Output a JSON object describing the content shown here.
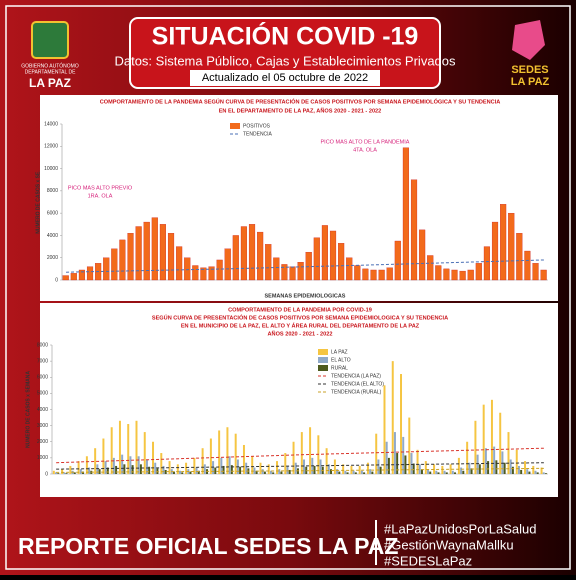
{
  "header": {
    "title": "SITUACIÓN COVID -19",
    "subtitle": "Datos: Sistema Público, Cajas y Establecimientos Privados",
    "updated": "Actualizado el  05  octubre  de 2022",
    "left_logo": [
      "GOBIERNO AUTÓNOMO",
      "DEPARTAMENTAL DE",
      "LA PAZ"
    ],
    "right_logo": [
      "SEDES",
      "LA PAZ"
    ]
  },
  "footer": {
    "title": "REPORTE OFICIAL SEDES LA PAZ",
    "hashtags": [
      "#LaPazUnidosPorLaSalud",
      "#GestiónWaynaMallku",
      "#SEDESLaPaz"
    ]
  },
  "chart_data": [
    {
      "type": "bar",
      "title": [
        "COMPORTAMIENTO DE LA PANDEMIA SEGÚN CURVA DE PRESENTACIÓN DE CASOS POSITIVOS POR SEMANA EPIDEMIOLÓGICA Y SU TENDENCIA",
        "EN EL DEPARTAMENTO DE LA PAZ, AÑOS 2020 - 2021 - 2022"
      ],
      "ylabel": "NUMERO DE CASOS x SE.",
      "xlabel": "SEMANAS EPIDEMIOLOGICAS",
      "ylim": [
        0,
        14000
      ],
      "yticks": [
        0,
        2000,
        4000,
        6000,
        8000,
        10000,
        12000,
        14000
      ],
      "annotations": [
        [
          "PICO MAS ALTO PREVIO",
          "1RA. OLA"
        ],
        [
          "PICO MAS ALTO DE LA PANDEMIA",
          "4TA. OLA"
        ]
      ],
      "series": [
        {
          "name": "POSITIVOS",
          "color": "#f26a1b",
          "values": [
            400,
            600,
            900,
            1200,
            1500,
            2000,
            2800,
            3600,
            4200,
            4800,
            5200,
            5600,
            5000,
            4200,
            3000,
            2000,
            1300,
            1100,
            1200,
            1800,
            2800,
            4000,
            4800,
            5000,
            4300,
            3200,
            2000,
            1400,
            1200,
            1600,
            2500,
            3800,
            4900,
            4400,
            3300,
            2000,
            1300,
            1000,
            900,
            900,
            1100,
            3500,
            11877,
            9000,
            4500,
            2200,
            1300,
            1000,
            900,
            800,
            900,
            1500,
            3000,
            5200,
            6800,
            6000,
            4200,
            2600,
            1500,
            900
          ]
        },
        {
          "name": "TENDENCIA",
          "type": "line",
          "color": "#4a6fb5",
          "x": [
            0,
            20,
            40,
            59
          ],
          "values": [
            700,
            1000,
            1400,
            1800
          ]
        }
      ]
    },
    {
      "type": "bar",
      "title": [
        "COMPORTAMIENTO DE LA PANDEMIA POR COVID-19",
        "SEGÚN CURVA DE PRESENTACIÓN DE CASOS POSITIVOS POR SEMANA EPIDEMIOLOGICA Y SU TENDENCIA",
        "EN EL  MUNICIPIO DE LA PAZ, EL ALTO Y ÁREA RURAL DEL DEPARTAMENTO DE LA PAZ",
        "AÑOS 2020 - 2021 - 2022"
      ],
      "ylabel": "NUMERO DE CASOS x SEMANA",
      "ylim": [
        0,
        8000
      ],
      "yticks": [
        0,
        1000,
        2000,
        3000,
        4000,
        5000,
        6000,
        7000,
        8000
      ],
      "series": [
        {
          "name": "LA PAZ",
          "color": "#f5c542",
          "values": [
            200,
            300,
            500,
            800,
            1100,
            1600,
            2200,
            2900,
            3300,
            3100,
            3300,
            2600,
            2000,
            1300,
            800,
            600,
            700,
            1000,
            1600,
            2200,
            2700,
            2900,
            2500,
            1800,
            1100,
            700,
            600,
            800,
            1300,
            2000,
            2600,
            2900,
            2400,
            1600,
            900,
            600,
            500,
            500,
            700,
            2500,
            5500,
            7000,
            6200,
            3500,
            1500,
            800,
            600,
            500,
            600,
            1000,
            2000,
            3300,
            4300,
            4600,
            3800,
            2600,
            1500,
            800,
            500,
            400
          ]
        },
        {
          "name": "EL ALTO",
          "color": "#8fa9c9",
          "values": [
            100,
            100,
            200,
            300,
            400,
            600,
            800,
            1000,
            1200,
            1100,
            1100,
            900,
            700,
            500,
            300,
            200,
            300,
            400,
            600,
            800,
            1000,
            1100,
            900,
            700,
            400,
            300,
            200,
            300,
            500,
            700,
            900,
            1000,
            900,
            600,
            300,
            200,
            200,
            200,
            300,
            900,
            2000,
            2600,
            2300,
            1300,
            600,
            300,
            200,
            200,
            200,
            400,
            700,
            1200,
            1600,
            1700,
            1400,
            900,
            500,
            300,
            200,
            100
          ]
        },
        {
          "name": "RURAL",
          "color": "#4d5a1e",
          "values": [
            50,
            50,
            100,
            150,
            200,
            300,
            400,
            500,
            600,
            550,
            600,
            450,
            350,
            250,
            150,
            100,
            150,
            200,
            300,
            400,
            500,
            550,
            450,
            350,
            200,
            150,
            100,
            150,
            250,
            350,
            450,
            500,
            450,
            300,
            150,
            100,
            100,
            100,
            150,
            450,
            1000,
            1300,
            1150,
            650,
            300,
            150,
            100,
            100,
            100,
            200,
            350,
            600,
            800,
            850,
            700,
            450,
            250,
            150,
            100,
            50
          ]
        },
        {
          "name": "TENDENCIA (LA PAZ)",
          "type": "line",
          "color": "#d9342b",
          "x": [
            0,
            30,
            59
          ],
          "values": [
            700,
            1200,
            1600
          ]
        },
        {
          "name": "TENDENCIA (EL ALTO)",
          "type": "line",
          "color": "#333333",
          "x": [
            0,
            30,
            59
          ],
          "values": [
            300,
            500,
            700
          ]
        },
        {
          "name": "TENDENCIA (RURAL)",
          "type": "line",
          "color": "#c9a227",
          "x": [
            0,
            30,
            59
          ],
          "values": [
            100,
            200,
            350
          ]
        }
      ]
    }
  ]
}
